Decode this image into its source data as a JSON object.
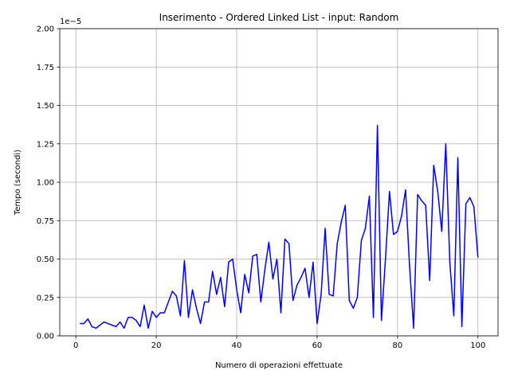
{
  "chart_data": {
    "type": "line",
    "title": "Inserimento - Ordered Linked List - input: Random",
    "xlabel": "Numero di operazioni effettuate",
    "ylabel": "Tempo (secondi)",
    "y_offset_label": "1e−5",
    "xlim": [
      -4,
      105
    ],
    "ylim": [
      0,
      2.0
    ],
    "y_scale_factor": 1e-05,
    "grid": true,
    "line_color": "#0000ff",
    "x_ticks": [
      0,
      20,
      40,
      60,
      80,
      100
    ],
    "x_tick_labels": [
      "0",
      "20",
      "40",
      "60",
      "80",
      "100"
    ],
    "y_ticks": [
      0,
      0.25,
      0.5,
      0.75,
      1.0,
      1.25,
      1.5,
      1.75,
      2.0
    ],
    "y_tick_labels": [
      "0.00",
      "0.25",
      "0.50",
      "0.75",
      "1.00",
      "1.25",
      "1.50",
      "1.75",
      "2.00"
    ],
    "series": [
      {
        "x": [
          1,
          2,
          3,
          4,
          5,
          6,
          7,
          8,
          9,
          10,
          11,
          12,
          13,
          14,
          15,
          16,
          17,
          18,
          19,
          20,
          21,
          22,
          23,
          24,
          25,
          26,
          27,
          28,
          29,
          30,
          31,
          32,
          33,
          34,
          35,
          36,
          37,
          38,
          39,
          40,
          41,
          42,
          43,
          44,
          45,
          46,
          47,
          48,
          49,
          50,
          51,
          52,
          53,
          54,
          55,
          56,
          57,
          58,
          59,
          60,
          61,
          62,
          63,
          64,
          65,
          66,
          67,
          68,
          69,
          70,
          71,
          72,
          73,
          74,
          75,
          76,
          77,
          78,
          79,
          80,
          81,
          82,
          83,
          84,
          85,
          86,
          87,
          88,
          89,
          90,
          91,
          92,
          93,
          94,
          95,
          96,
          97,
          98,
          99,
          100
        ],
        "values": [
          0.08,
          0.08,
          0.11,
          0.06,
          0.05,
          0.07,
          0.09,
          0.08,
          0.07,
          0.06,
          0.09,
          0.05,
          0.12,
          0.12,
          0.1,
          0.06,
          0.2,
          0.05,
          0.16,
          0.12,
          0.15,
          0.15,
          0.22,
          0.29,
          0.26,
          0.13,
          0.49,
          0.12,
          0.3,
          0.18,
          0.08,
          0.22,
          0.22,
          0.42,
          0.27,
          0.38,
          0.19,
          0.48,
          0.5,
          0.3,
          0.15,
          0.4,
          0.28,
          0.52,
          0.53,
          0.22,
          0.43,
          0.61,
          0.37,
          0.5,
          0.15,
          0.63,
          0.6,
          0.23,
          0.33,
          0.38,
          0.44,
          0.25,
          0.48,
          0.08,
          0.27,
          0.7,
          0.27,
          0.26,
          0.6,
          0.74,
          0.85,
          0.23,
          0.18,
          0.25,
          0.62,
          0.7,
          0.91,
          0.12,
          1.37,
          0.1,
          0.5,
          0.94,
          0.66,
          0.68,
          0.78,
          0.95,
          0.45,
          0.05,
          0.92,
          0.88,
          0.85,
          0.36,
          1.11,
          0.94,
          0.68,
          1.25,
          0.48,
          0.13,
          1.16,
          0.06,
          0.86,
          0.9,
          0.84,
          0.51
        ]
      }
    ]
  }
}
